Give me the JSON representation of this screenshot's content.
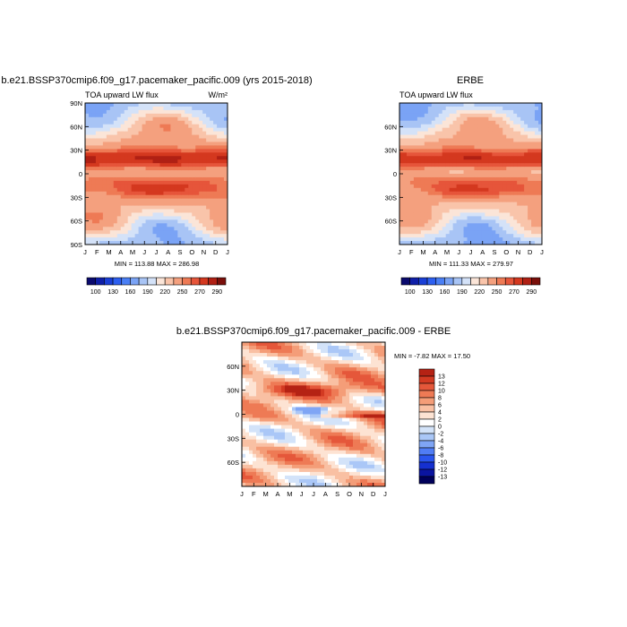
{
  "colors": {
    "model_obs_scale": [
      "#0a0a6e",
      "#0f1fa8",
      "#1a3fd6",
      "#2d5ff0",
      "#4a7ff5",
      "#7aa3f5",
      "#a8c4f5",
      "#d4e2f8",
      "#fbe5d8",
      "#f9c4aa",
      "#f4a07e",
      "#ee7a55",
      "#e6553a",
      "#d4381f",
      "#b02014",
      "#7a0f0a"
    ],
    "diff_scale": [
      "#00005a",
      "#0a14a0",
      "#1530d0",
      "#2a55ee",
      "#507df5",
      "#7fa5f5",
      "#aac7f7",
      "#d3e3f9",
      "#ffffff",
      "#fde3d3",
      "#f9c0a3",
      "#f49d78",
      "#ee7a55",
      "#e5573a",
      "#d33a22",
      "#b52214",
      "#7d0c08"
    ]
  },
  "chart_data": [
    {
      "type": "heatmap",
      "title": "b.e21.BSSP370cmip6.f09_g17.pacemaker_pacific.009 (yrs 2015-2018)",
      "subtitle_left": "TOA upward LW flux",
      "units": "W/m²",
      "x_ticks": [
        "J",
        "F",
        "M",
        "A",
        "M",
        "J",
        "J",
        "A",
        "S",
        "O",
        "N",
        "D",
        "J"
      ],
      "y_ticks": [
        "90N",
        "60N",
        "30N",
        "0",
        "30S",
        "60S",
        "90S"
      ],
      "min_max": "MIN = 113.88  MAX = 286.98",
      "colorbar_labels": [
        "100",
        "130",
        "160",
        "190",
        "220",
        "250",
        "270",
        "290"
      ]
    },
    {
      "type": "heatmap",
      "title": "ERBE",
      "subtitle_left": "TOA upward LW flux",
      "x_ticks": [
        "J",
        "F",
        "M",
        "A",
        "M",
        "J",
        "J",
        "A",
        "S",
        "O",
        "N",
        "D",
        "J"
      ],
      "y_ticks": [
        "60N",
        "30N",
        "0",
        "30S",
        "60S"
      ],
      "min_max": "MIN = 111.33  MAX = 279.97",
      "colorbar_labels": [
        "100",
        "130",
        "160",
        "190",
        "220",
        "250",
        "270",
        "290"
      ]
    },
    {
      "type": "heatmap",
      "title": "b.e21.BSSP370cmip6.f09_g17.pacemaker_pacific.009 - ERBE",
      "x_ticks": [
        "J",
        "F",
        "M",
        "A",
        "M",
        "J",
        "J",
        "A",
        "S",
        "O",
        "N",
        "D",
        "J"
      ],
      "y_ticks": [
        "60N",
        "30N",
        "0",
        "30S",
        "60S"
      ],
      "min_max": "MIN =  -7.82  MAX =  17.50",
      "colorbar_labels": [
        "13",
        "12",
        "10",
        "8",
        "6",
        "4",
        "2",
        "0",
        "-2",
        "-4",
        "-6",
        "-8",
        "-10",
        "-12",
        "-13"
      ]
    }
  ]
}
